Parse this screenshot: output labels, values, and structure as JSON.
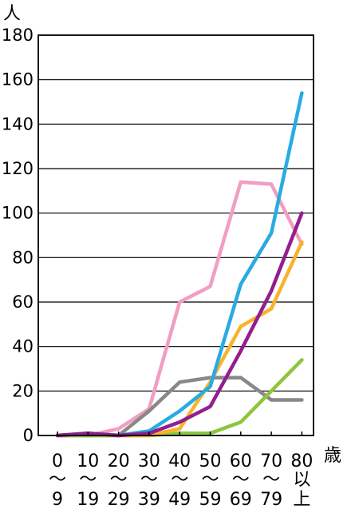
{
  "chart_data": {
    "type": "line",
    "title": "",
    "y_unit_label": "人",
    "x_unit_label": "歳",
    "ylim": [
      0,
      180
    ],
    "yticks": [
      0,
      20,
      40,
      60,
      80,
      100,
      120,
      140,
      160,
      180
    ],
    "grid": true,
    "legend": "none",
    "categories": [
      {
        "top": "0",
        "sep": "〜",
        "bottom": "9"
      },
      {
        "top": "10",
        "sep": "〜",
        "bottom": "19"
      },
      {
        "top": "20",
        "sep": "〜",
        "bottom": "29"
      },
      {
        "top": "30",
        "sep": "〜",
        "bottom": "39"
      },
      {
        "top": "40",
        "sep": "〜",
        "bottom": "49"
      },
      {
        "top": "50",
        "sep": "〜",
        "bottom": "59"
      },
      {
        "top": "60",
        "sep": "〜",
        "bottom": "69"
      },
      {
        "top": "70",
        "sep": "〜",
        "bottom": "79"
      },
      {
        "top": "80",
        "sep": "以",
        "bottom": "上"
      }
    ],
    "series": [
      {
        "color": "#f19ec2",
        "values": [
          0,
          0,
          3,
          12,
          60,
          67,
          114,
          113,
          86
        ]
      },
      {
        "color": "#888888",
        "values": [
          0,
          0,
          0,
          11,
          24,
          26,
          26,
          16,
          16
        ]
      },
      {
        "color": "#8cc63f",
        "values": [
          0,
          0,
          0,
          0,
          1,
          1,
          6,
          20,
          34
        ]
      },
      {
        "color": "#f7b32b",
        "values": [
          0,
          1,
          0,
          0,
          3,
          24,
          49,
          57,
          87
        ]
      },
      {
        "color": "#29abe2",
        "values": [
          0,
          1,
          0,
          2,
          11,
          22,
          68,
          91,
          154
        ]
      },
      {
        "color": "#921e8f",
        "values": [
          0,
          1,
          0,
          1,
          6,
          13,
          38,
          65,
          100
        ]
      }
    ]
  }
}
